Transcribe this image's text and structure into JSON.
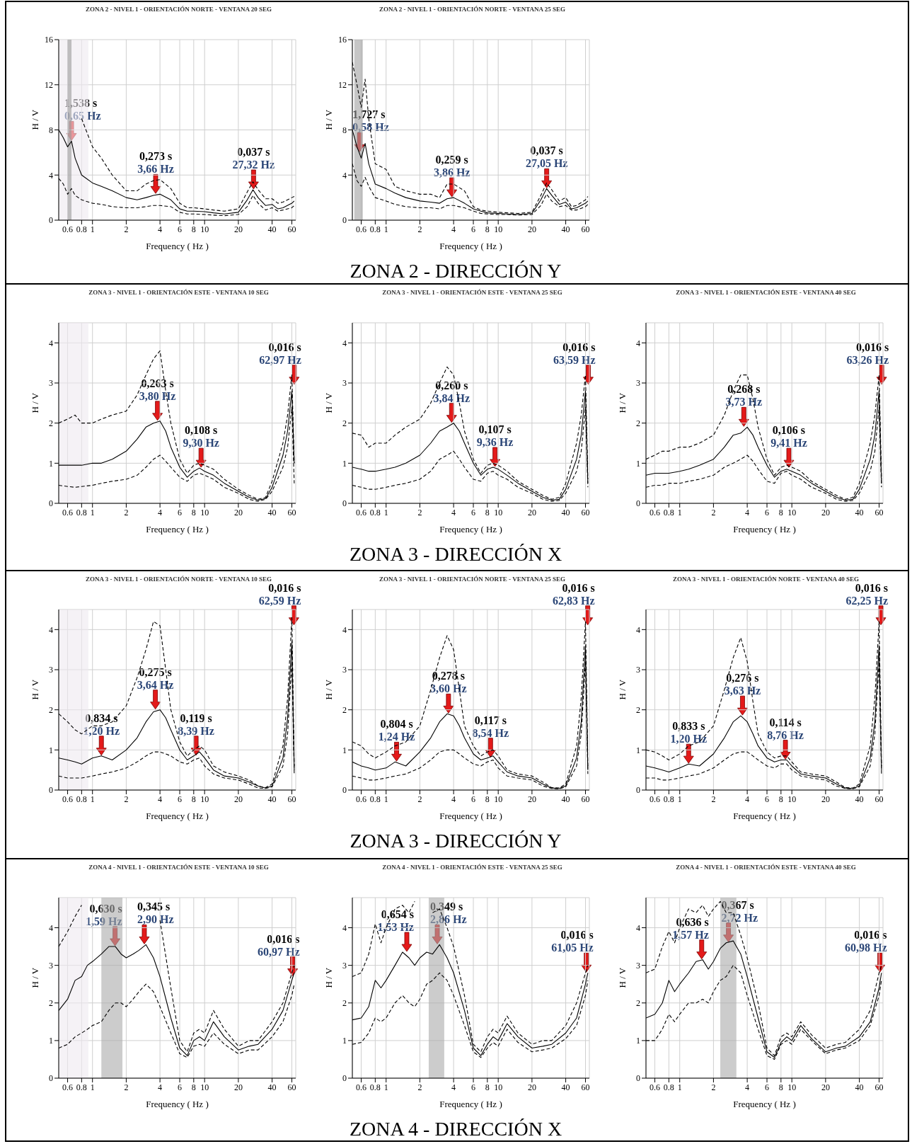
{
  "chart_data": [
    {
      "type": "line",
      "title": "ZONA 2 - NIVEL 1 - ORIENTACIÓN NORTE - VENTANA 20 SEG",
      "xlabel": "Frequency ( Hz )",
      "ylabel": "H / V",
      "log": "x",
      "grid": true,
      "xlim": [
        0.5,
        65
      ],
      "xticks": [
        0.6,
        0.8,
        1,
        2,
        4,
        6,
        8,
        10,
        20,
        40,
        60
      ],
      "ylim": [
        0,
        16
      ],
      "yticks": [
        0,
        4,
        8,
        12,
        16
      ],
      "x": [
        0.5,
        0.55,
        0.6,
        0.65,
        0.7,
        0.8,
        1,
        1.2,
        1.5,
        2,
        2.5,
        3,
        3.5,
        4,
        5,
        6,
        7,
        8,
        10,
        12,
        15,
        20,
        24,
        27,
        30,
        35,
        40,
        45,
        50,
        60,
        63
      ],
      "series": [
        {
          "color": "#000000",
          "line_style": "solid",
          "values": [
            8,
            7.3,
            6.5,
            7,
            5.5,
            4,
            3.3,
            3,
            2.6,
            2,
            1.8,
            2,
            2.2,
            2.3,
            1.8,
            1,
            0.8,
            0.8,
            0.75,
            0.65,
            0.55,
            0.7,
            1.8,
            2.7,
            2,
            1.3,
            1.4,
            1,
            1.1,
            1.5,
            1.7
          ]
        },
        {
          "color": "#000000",
          "line_style": "dashed",
          "values": [
            null,
            null,
            null,
            null,
            null,
            9,
            6.5,
            5.5,
            4,
            2.6,
            2.6,
            3.2,
            3.5,
            3.6,
            2.8,
            1.5,
            1.1,
            1.1,
            1,
            0.9,
            0.8,
            1,
            2.5,
            3.4,
            2.7,
            1.9,
            1.9,
            1.5,
            1.6,
            2,
            2.1
          ]
        },
        {
          "color": "#000000",
          "line_style": "dashed",
          "values": [
            3.7,
            3.2,
            2.3,
            2.8,
            2.2,
            1.8,
            1.5,
            1.4,
            1.2,
            1.1,
            1.1,
            1.2,
            1.3,
            1.3,
            1.2,
            0.7,
            0.55,
            0.55,
            0.5,
            0.45,
            0.4,
            0.5,
            1.2,
            2.2,
            1.5,
            0.9,
            1.1,
            0.8,
            0.9,
            1.1,
            1.3
          ]
        }
      ],
      "bands": [
        {
          "axis": "x",
          "from": 0.5,
          "to": 0.92,
          "color": "#efe9f0"
        },
        {
          "axis": "x",
          "from": 0.6,
          "to": 0.65,
          "color": "#999999"
        }
      ],
      "annotations": [
        {
          "text": "1,538 s",
          "x": 0.65,
          "y": 7
        },
        {
          "text": "0,65 Hz",
          "x": 0.65,
          "y": 7
        },
        {
          "text": "0,273 s",
          "x": 3.66,
          "y": 2.3
        },
        {
          "text": "3,66 Hz",
          "x": 3.66,
          "y": 2.3
        },
        {
          "text": "0,037 s",
          "x": 27.32,
          "y": 2.7
        },
        {
          "text": "27,32 Hz",
          "x": 27.32,
          "y": 2.7
        },
        "ZONA 2 - DIRECCIÓN Y"
      ]
    },
    {
      "type": "line",
      "title": "ZONA 2 - NIVEL 1 - ORIENTACIÓN NORTE - VENTANA 25 SEG",
      "xlabel": "Frequency ( Hz )",
      "ylabel": "H / V",
      "log": "x",
      "grid": true,
      "xlim": [
        0.5,
        65
      ],
      "xticks": [
        0.6,
        0.8,
        1,
        2,
        4,
        6,
        8,
        10,
        20,
        40,
        60
      ],
      "ylim": [
        0,
        16
      ],
      "yticks": [
        0,
        4,
        8,
        12,
        16
      ],
      "x": [
        0.5,
        0.55,
        0.6,
        0.65,
        0.7,
        0.8,
        1,
        1.2,
        1.5,
        2,
        2.5,
        3,
        3.5,
        4,
        5,
        6,
        7,
        8,
        10,
        12,
        15,
        20,
        24,
        27,
        30,
        35,
        40,
        45,
        50,
        60,
        63
      ],
      "series": [
        {
          "color": "#000000",
          "line_style": "solid",
          "values": [
            8,
            6.5,
            5.5,
            6.8,
            5,
            3.2,
            2.8,
            2.4,
            2,
            1.7,
            1.6,
            1.5,
            1.9,
            2,
            1.5,
            1,
            0.8,
            0.65,
            0.6,
            0.55,
            0.5,
            0.6,
            1.8,
            2.8,
            2.2,
            1.4,
            1.6,
            1,
            1.1,
            1.5,
            1.7
          ]
        },
        {
          "color": "#000000",
          "line_style": "dashed",
          "values": [
            14,
            12,
            10,
            12.5,
            9,
            5,
            4.5,
            3,
            2.6,
            2.3,
            2.3,
            2,
            3.2,
            3.2,
            2.6,
            1.2,
            0.9,
            0.8,
            0.7,
            0.65,
            0.6,
            0.7,
            2.2,
            3.3,
            2.7,
            1.7,
            2,
            1.2,
            1.3,
            1.8,
            2.1
          ]
        },
        {
          "color": "#000000",
          "line_style": "dashed",
          "values": [
            5,
            3.5,
            3,
            3.8,
            3,
            2,
            1.7,
            1.4,
            1.2,
            1.1,
            1.1,
            1,
            1.3,
            1.3,
            1.1,
            0.8,
            0.6,
            0.55,
            0.5,
            0.5,
            0.45,
            0.5,
            1.3,
            2.3,
            1.7,
            1.2,
            1.3,
            0.9,
            0.9,
            1.2,
            1.4
          ]
        }
      ],
      "bands": [
        {
          "axis": "x",
          "from": 0.52,
          "to": 0.62,
          "color": "#a0a0a0"
        }
      ],
      "annotations": [
        {
          "text": "1,727 s",
          "x": 0.58,
          "y": 6
        },
        {
          "text": "0,58 Hz",
          "x": 0.58,
          "y": 6
        },
        {
          "text": "0,259 s",
          "x": 3.86,
          "y": 2
        },
        {
          "text": "3,86 Hz",
          "x": 3.86,
          "y": 2
        },
        {
          "text": "0,037 s",
          "x": 27.05,
          "y": 2.8
        },
        {
          "text": "27,05 Hz",
          "x": 27.05,
          "y": 2.8
        }
      ]
    },
    {
      "type": "line",
      "title": "ZONA 3 - NIVEL 1 - ORIENTACIÓN ESTE - VENTANA 10 SEG",
      "xlabel": "Frequency ( Hz )",
      "ylabel": "H / V",
      "log": "x",
      "grid": true,
      "xlim": [
        0.5,
        65
      ],
      "xticks": [
        0.6,
        0.8,
        1,
        2,
        4,
        6,
        8,
        10,
        20,
        40,
        60
      ],
      "ylim": [
        0,
        4.5
      ],
      "yticks": [
        0,
        1,
        2,
        3,
        4
      ],
      "x": [
        0.5,
        0.6,
        0.7,
        0.8,
        1,
        1.2,
        1.5,
        2,
        2.5,
        3,
        3.5,
        4,
        4.5,
        5,
        6,
        7,
        8,
        9,
        10,
        12,
        15,
        20,
        25,
        30,
        35,
        40,
        50,
        55,
        60,
        63
      ],
      "series": [
        {
          "color": "#000000",
          "line_style": "solid",
          "values": [
            0.95,
            0.95,
            0.95,
            0.95,
            1,
            1,
            1.1,
            1.3,
            1.6,
            1.9,
            2,
            2.05,
            1.8,
            1.4,
            0.9,
            0.65,
            0.8,
            0.88,
            0.8,
            0.7,
            0.5,
            0.3,
            0.15,
            0.08,
            0.12,
            0.4,
            1.2,
            1.8,
            2.8,
            1
          ]
        },
        {
          "color": "#000000",
          "line_style": "dashed",
          "values": [
            2,
            2.1,
            2.2,
            2,
            2,
            2.1,
            2.2,
            2.3,
            2.7,
            3.2,
            3.6,
            3.8,
            2.8,
            2,
            1.1,
            0.75,
            0.95,
            1,
            0.95,
            0.85,
            0.6,
            0.35,
            0.2,
            0.1,
            0.15,
            0.55,
            1.5,
            2.2,
            3.2,
            1
          ]
        },
        {
          "color": "#000000",
          "line_style": "dashed",
          "values": [
            0.45,
            0.42,
            0.4,
            0.42,
            0.45,
            0.5,
            0.55,
            0.6,
            0.7,
            0.9,
            1.1,
            1.2,
            1.05,
            0.9,
            0.65,
            0.55,
            0.7,
            0.75,
            0.7,
            0.6,
            0.4,
            0.25,
            0.1,
            0.05,
            0.1,
            0.3,
            0.9,
            1.4,
            2.4,
            0.5
          ]
        }
      ],
      "bands": [
        {
          "axis": "x",
          "from": 0.5,
          "to": 0.92,
          "color": "#efe9f0"
        }
      ],
      "annotations": [
        {
          "text": "0,263 s",
          "x": 3.8,
          "y": 2.05
        },
        {
          "text": "3,80 Hz",
          "x": 3.8,
          "y": 2.05
        },
        {
          "text": "0,108 s",
          "x": 9.3,
          "y": 0.88
        },
        {
          "text": "9,30 Hz",
          "x": 9.3,
          "y": 0.88
        },
        {
          "text": "0,016 s",
          "x": 62.97,
          "y": 2.95
        },
        {
          "text": "62,97 Hz",
          "x": 62.97,
          "y": 2.95
        },
        "ZONA 3 - DIRECCIÓN X"
      ]
    },
    {
      "type": "line",
      "title": "ZONA 3 - NIVEL 1 - ORIENTACIÓN ESTE - VENTANA 25 SEG",
      "xlabel": "Frequency ( Hz )",
      "ylabel": "H / V",
      "log": "x",
      "grid": true,
      "xlim": [
        0.5,
        65
      ],
      "xticks": [
        0.6,
        0.8,
        1,
        2,
        4,
        6,
        8,
        10,
        20,
        40,
        60
      ],
      "ylim": [
        0,
        4.5
      ],
      "yticks": [
        0,
        1,
        2,
        3,
        4
      ],
      "x": [
        0.5,
        0.6,
        0.7,
        0.8,
        1,
        1.2,
        1.5,
        2,
        2.5,
        3,
        3.5,
        4,
        4.5,
        5,
        6,
        7,
        8,
        9,
        10,
        12,
        15,
        20,
        25,
        30,
        35,
        40,
        50,
        55,
        60,
        63
      ],
      "series": [
        {
          "color": "#000000",
          "line_style": "solid",
          "values": [
            0.9,
            0.85,
            0.8,
            0.8,
            0.85,
            0.9,
            1,
            1.2,
            1.5,
            1.8,
            1.9,
            2,
            1.8,
            1.5,
            1,
            0.7,
            0.85,
            0.9,
            0.85,
            0.7,
            0.5,
            0.3,
            0.15,
            0.08,
            0.1,
            0.35,
            1.1,
            1.7,
            2.8,
            0.5
          ]
        },
        {
          "color": "#000000",
          "line_style": "dashed",
          "values": [
            1.75,
            1.7,
            1.4,
            1.5,
            1.5,
            1.7,
            1.9,
            2.1,
            2.5,
            3,
            3.4,
            3.2,
            2.5,
            1.8,
            1.1,
            0.75,
            0.95,
            1,
            0.95,
            0.8,
            0.55,
            0.35,
            0.2,
            0.1,
            0.15,
            0.5,
            1.5,
            2.2,
            3.2,
            0.6
          ]
        },
        {
          "color": "#000000",
          "line_style": "dashed",
          "values": [
            0.45,
            0.4,
            0.35,
            0.35,
            0.4,
            0.45,
            0.5,
            0.6,
            0.8,
            1.1,
            1.2,
            1.3,
            1.1,
            0.9,
            0.6,
            0.55,
            0.75,
            0.8,
            0.7,
            0.6,
            0.4,
            0.25,
            0.1,
            0.05,
            0.07,
            0.25,
            0.8,
            1.3,
            2.4,
            0.4
          ]
        }
      ],
      "annotations": [
        {
          "text": "0,260 s",
          "x": 3.84,
          "y": 2
        },
        {
          "text": "3,84 Hz",
          "x": 3.84,
          "y": 2
        },
        {
          "text": "0,107 s",
          "x": 9.36,
          "y": 0.9
        },
        {
          "text": "9,36 Hz",
          "x": 9.36,
          "y": 0.9
        },
        {
          "text": "0,016 s",
          "x": 63.59,
          "y": 2.95
        },
        {
          "text": "63,59 Hz",
          "x": 63.59,
          "y": 2.95
        }
      ]
    },
    {
      "type": "line",
      "title": "ZONA 3 - NIVEL 1 - ORIENTACIÓN ESTE - VENTANA 40 SEG",
      "xlabel": "Frequency ( Hz )",
      "ylabel": "H / V",
      "log": "x",
      "grid": true,
      "xlim": [
        0.5,
        65
      ],
      "xticks": [
        0.6,
        0.8,
        1,
        2,
        4,
        6,
        8,
        10,
        20,
        40,
        60
      ],
      "ylim": [
        0,
        4.5
      ],
      "yticks": [
        0,
        1,
        2,
        3,
        4
      ],
      "x": [
        0.5,
        0.6,
        0.7,
        0.8,
        1,
        1.2,
        1.5,
        2,
        2.5,
        3,
        3.5,
        4,
        4.5,
        5,
        6,
        7,
        8,
        9,
        10,
        12,
        15,
        20,
        25,
        30,
        35,
        40,
        50,
        55,
        60,
        63
      ],
      "series": [
        {
          "color": "#000000",
          "line_style": "solid",
          "values": [
            0.7,
            0.75,
            0.75,
            0.75,
            0.8,
            0.85,
            0.95,
            1.1,
            1.4,
            1.7,
            1.75,
            1.9,
            1.7,
            1.4,
            0.95,
            0.65,
            0.8,
            0.85,
            0.8,
            0.7,
            0.5,
            0.3,
            0.15,
            0.08,
            0.1,
            0.35,
            1.1,
            1.7,
            2.8,
            0.5
          ]
        },
        {
          "color": "#000000",
          "line_style": "dashed",
          "values": [
            1.1,
            1.2,
            1.3,
            1.3,
            1.4,
            1.4,
            1.5,
            1.7,
            2.2,
            2.8,
            3.2,
            3.2,
            2.6,
            1.9,
            1.1,
            0.7,
            0.9,
            0.95,
            0.9,
            0.8,
            0.55,
            0.35,
            0.2,
            0.1,
            0.15,
            0.5,
            1.5,
            2.2,
            3.2,
            0.6
          ]
        },
        {
          "color": "#000000",
          "line_style": "dashed",
          "values": [
            0.4,
            0.45,
            0.45,
            0.5,
            0.5,
            0.55,
            0.6,
            0.7,
            0.9,
            1,
            1.1,
            1.2,
            1.05,
            0.85,
            0.55,
            0.5,
            0.75,
            0.8,
            0.7,
            0.6,
            0.4,
            0.25,
            0.1,
            0.05,
            0.07,
            0.25,
            0.8,
            1.3,
            2.4,
            0.4
          ]
        }
      ],
      "annotations": [
        {
          "text": "0,268 s",
          "x": 3.73,
          "y": 1.9
        },
        {
          "text": "3,73 Hz",
          "x": 3.73,
          "y": 1.9
        },
        {
          "text": "0,106 s",
          "x": 9.41,
          "y": 0.88
        },
        {
          "text": "9,41 Hz",
          "x": 9.41,
          "y": 0.88
        },
        {
          "text": "0,016 s",
          "x": 63.26,
          "y": 2.95
        },
        {
          "text": "63,26 Hz",
          "x": 63.26,
          "y": 2.95
        }
      ]
    },
    {
      "type": "line",
      "title": "ZONA 3 - NIVEL 1 - ORIENTACIÓN NORTE - VENTANA 10 SEG",
      "xlabel": "Frequency ( Hz )",
      "ylabel": "H / V",
      "log": "x",
      "grid": true,
      "xlim": [
        0.5,
        65
      ],
      "xticks": [
        0.6,
        0.8,
        1,
        2,
        4,
        6,
        8,
        10,
        20,
        40,
        60
      ],
      "ylim": [
        0,
        4.5
      ],
      "yticks": [
        0,
        1,
        2,
        3,
        4
      ],
      "x": [
        0.5,
        0.6,
        0.7,
        0.8,
        1,
        1.2,
        1.5,
        2,
        2.5,
        3,
        3.5,
        4,
        4.5,
        5,
        6,
        7,
        8,
        9,
        10,
        12,
        15,
        20,
        25,
        30,
        35,
        40,
        50,
        55,
        60,
        63
      ],
      "series": [
        {
          "color": "#000000",
          "line_style": "solid",
          "values": [
            0.8,
            0.75,
            0.7,
            0.65,
            0.8,
            0.85,
            0.75,
            1,
            1.3,
            1.7,
            1.95,
            2,
            1.8,
            1.5,
            1,
            0.75,
            0.85,
            0.95,
            0.8,
            0.5,
            0.35,
            0.3,
            0.2,
            0.1,
            0.05,
            0.1,
            0.8,
            1.8,
            3.7,
            0.5
          ]
        },
        {
          "color": "#000000",
          "line_style": "dashed",
          "values": [
            1.9,
            1.7,
            1.5,
            1.4,
            1.6,
            1.6,
            1.7,
            2.1,
            2.8,
            3.5,
            4.2,
            4.1,
            3,
            2,
            1.2,
            0.85,
            1,
            1.1,
            1,
            0.6,
            0.45,
            0.35,
            0.25,
            0.1,
            0.06,
            0.15,
            1.1,
            2.3,
            4.3,
            0.6
          ]
        },
        {
          "color": "#000000",
          "line_style": "dashed",
          "values": [
            0.35,
            0.3,
            0.3,
            0.3,
            0.35,
            0.4,
            0.45,
            0.55,
            0.7,
            0.85,
            0.95,
            0.95,
            0.9,
            0.85,
            0.7,
            0.65,
            0.75,
            0.8,
            0.6,
            0.4,
            0.3,
            0.25,
            0.15,
            0.05,
            0.04,
            0.08,
            0.6,
            1.4,
            3.2,
            0.4
          ]
        }
      ],
      "bands": [
        {
          "axis": "x",
          "from": 0.5,
          "to": 0.92,
          "color": "#efe9f0"
        }
      ],
      "annotations": [
        {
          "text": "0,834 s",
          "x": 1.2,
          "y": 0.85
        },
        {
          "text": "1,20 Hz",
          "x": 1.2,
          "y": 0.85
        },
        {
          "text": "0,275 s",
          "x": 3.64,
          "y": 2
        },
        {
          "text": "3,64 Hz",
          "x": 3.64,
          "y": 2
        },
        {
          "text": "0,119 s",
          "x": 8.39,
          "y": 0.85
        },
        {
          "text": "8,39 Hz",
          "x": 8.39,
          "y": 0.85
        },
        {
          "text": "0,016 s",
          "x": 62.59,
          "y": 4.1
        },
        {
          "text": "62,59 Hz",
          "x": 62.59,
          "y": 4.1
        },
        "ZONA 3 - DIRECCIÓN Y"
      ]
    },
    {
      "type": "line",
      "title": "ZONA 3 - NIVEL 1 - ORIENTACIÓN NORTE - VENTANA 25 SEG",
      "xlabel": "Frequency ( Hz )",
      "ylabel": "H / V",
      "log": "x",
      "grid": true,
      "xlim": [
        0.5,
        65
      ],
      "xticks": [
        0.6,
        0.8,
        1,
        2,
        4,
        6,
        8,
        10,
        20,
        40,
        60
      ],
      "ylim": [
        0,
        4.5
      ],
      "yticks": [
        0,
        1,
        2,
        3,
        4
      ],
      "x": [
        0.5,
        0.6,
        0.7,
        0.8,
        1,
        1.2,
        1.5,
        2,
        2.5,
        3,
        3.5,
        4,
        4.5,
        5,
        6,
        7,
        8,
        9,
        10,
        12,
        15,
        20,
        25,
        30,
        35,
        40,
        50,
        55,
        60,
        63
      ],
      "series": [
        {
          "color": "#000000",
          "line_style": "solid",
          "values": [
            0.7,
            0.6,
            0.55,
            0.5,
            0.55,
            0.7,
            0.6,
            0.95,
            1.3,
            1.7,
            1.9,
            1.85,
            1.6,
            1.3,
            0.9,
            0.75,
            0.8,
            0.85,
            0.7,
            0.45,
            0.35,
            0.3,
            0.15,
            0.05,
            0.04,
            0.1,
            0.8,
            1.7,
            3.6,
            0.5
          ]
        },
        {
          "color": "#000000",
          "line_style": "dashed",
          "values": [
            1.2,
            1.1,
            0.9,
            0.8,
            0.95,
            1.1,
            1.2,
            1.6,
            2.5,
            3.3,
            3.85,
            3.5,
            2.5,
            1.6,
            1.1,
            0.85,
            0.95,
            1,
            0.85,
            0.5,
            0.4,
            0.35,
            0.2,
            0.06,
            0.05,
            0.15,
            1.1,
            2.3,
            4.2,
            0.6
          ]
        },
        {
          "color": "#000000",
          "line_style": "dashed",
          "values": [
            0.35,
            0.3,
            0.25,
            0.25,
            0.3,
            0.35,
            0.4,
            0.55,
            0.75,
            0.95,
            1,
            1,
            0.9,
            0.8,
            0.65,
            0.6,
            0.7,
            0.75,
            0.55,
            0.35,
            0.3,
            0.25,
            0.1,
            0.04,
            0.03,
            0.08,
            0.6,
            1.4,
            3.2,
            0.4
          ]
        }
      ],
      "annotations": [
        {
          "text": "0,804 s",
          "x": 1.24,
          "y": 0.7
        },
        {
          "text": "1,24 Hz",
          "x": 1.24,
          "y": 0.7
        },
        {
          "text": "0,278 s",
          "x": 3.6,
          "y": 1.9
        },
        {
          "text": "3,60 Hz",
          "x": 3.6,
          "y": 1.9
        },
        {
          "text": "0,117 s",
          "x": 8.54,
          "y": 0.8
        },
        {
          "text": "8,54 Hz",
          "x": 8.54,
          "y": 0.8
        },
        {
          "text": "0,016 s",
          "x": 62.83,
          "y": 4.1
        },
        {
          "text": "62,83 Hz",
          "x": 62.83,
          "y": 4.1
        }
      ]
    },
    {
      "type": "line",
      "title": "ZONA 3 - NIVEL 1 - ORIENTACIÓN NORTE - VENTANA 40 SEG",
      "xlabel": "Frequency ( Hz )",
      "ylabel": "H / V",
      "log": "x",
      "grid": true,
      "xlim": [
        0.5,
        65
      ],
      "xticks": [
        0.6,
        0.8,
        1,
        2,
        4,
        6,
        8,
        10,
        20,
        40,
        60
      ],
      "ylim": [
        0,
        4.5
      ],
      "yticks": [
        0,
        1,
        2,
        3,
        4
      ],
      "x": [
        0.5,
        0.6,
        0.7,
        0.8,
        1,
        1.2,
        1.5,
        2,
        2.5,
        3,
        3.5,
        4,
        4.5,
        5,
        6,
        7,
        8,
        9,
        10,
        12,
        15,
        20,
        25,
        30,
        35,
        40,
        50,
        55,
        60,
        63
      ],
      "series": [
        {
          "color": "#000000",
          "line_style": "solid",
          "values": [
            0.6,
            0.55,
            0.5,
            0.45,
            0.55,
            0.65,
            0.6,
            0.9,
            1.3,
            1.7,
            1.85,
            1.7,
            1.4,
            1.1,
            0.8,
            0.7,
            0.75,
            0.75,
            0.6,
            0.4,
            0.35,
            0.3,
            0.15,
            0.05,
            0.04,
            0.1,
            0.8,
            1.7,
            3.6,
            0.5
          ]
        },
        {
          "color": "#000000",
          "line_style": "dashed",
          "values": [
            1,
            0.95,
            0.85,
            0.75,
            0.9,
            1.1,
            1.2,
            1.6,
            2.5,
            3.3,
            3.8,
            3.2,
            2.2,
            1.4,
            0.95,
            0.8,
            0.85,
            0.85,
            0.7,
            0.45,
            0.4,
            0.35,
            0.2,
            0.06,
            0.05,
            0.15,
            1.1,
            2.3,
            4.2,
            0.6
          ]
        },
        {
          "color": "#000000",
          "line_style": "dashed",
          "values": [
            0.3,
            0.3,
            0.25,
            0.25,
            0.3,
            0.35,
            0.4,
            0.55,
            0.75,
            0.9,
            0.95,
            0.95,
            0.85,
            0.75,
            0.6,
            0.55,
            0.65,
            0.65,
            0.5,
            0.35,
            0.3,
            0.25,
            0.1,
            0.04,
            0.03,
            0.08,
            0.6,
            1.4,
            3.2,
            0.4
          ]
        }
      ],
      "annotations": [
        {
          "text": "0,833 s",
          "x": 1.2,
          "y": 0.65
        },
        {
          "text": "1,20 Hz",
          "x": 1.2,
          "y": 0.65
        },
        {
          "text": "0,276 s",
          "x": 3.63,
          "y": 1.85
        },
        {
          "text": "3,63 Hz",
          "x": 3.63,
          "y": 1.85
        },
        {
          "text": "0,114 s",
          "x": 8.76,
          "y": 0.75
        },
        {
          "text": "8,76 Hz",
          "x": 8.76,
          "y": 0.75
        },
        {
          "text": "0,016 s",
          "x": 62.25,
          "y": 4.1
        },
        {
          "text": "62,25 Hz",
          "x": 62.25,
          "y": 4.1
        }
      ]
    },
    {
      "type": "line",
      "title": "ZONA 4 - NIVEL 1 - ORIENTACIÓN ESTE - VENTANA 10 SEG",
      "xlabel": "Frequency ( Hz )",
      "ylabel": "H / V",
      "log": "x",
      "grid": true,
      "xlim": [
        0.5,
        65
      ],
      "xticks": [
        0.6,
        0.8,
        1,
        2,
        4,
        6,
        8,
        10,
        20,
        40,
        60
      ],
      "ylim": [
        0,
        4.8
      ],
      "yticks": [
        0,
        1,
        2,
        3,
        4
      ],
      "x": [
        0.5,
        0.6,
        0.7,
        0.8,
        0.9,
        1,
        1.2,
        1.4,
        1.6,
        1.8,
        2,
        2.3,
        2.6,
        3,
        3.5,
        4,
        5,
        6,
        7,
        8,
        9,
        10,
        12,
        15,
        20,
        25,
        30,
        40,
        50,
        60,
        63
      ],
      "series": [
        {
          "color": "#000000",
          "line_style": "solid",
          "values": [
            1.8,
            2.1,
            2.6,
            2.7,
            3,
            3.1,
            3.3,
            3.5,
            3.5,
            3.3,
            3.2,
            3.3,
            3.4,
            3.55,
            3.2,
            2.7,
            1.6,
            0.8,
            0.6,
            1,
            1.1,
            1,
            1.5,
            1.1,
            0.75,
            0.85,
            0.9,
            1.3,
            1.8,
            2.6,
            2.8
          ]
        },
        {
          "color": "#000000",
          "line_style": "dashed",
          "values": [
            3.5,
            3.9,
            4.3,
            4.6,
            null,
            null,
            null,
            null,
            null,
            null,
            null,
            null,
            null,
            null,
            null,
            4.2,
            2.4,
            1,
            0.7,
            1.2,
            1.3,
            1.2,
            1.8,
            1.3,
            0.85,
            1,
            1,
            1.5,
            2,
            2.8,
            3
          ]
        },
        {
          "color": "#000000",
          "line_style": "dashed",
          "values": [
            0.8,
            0.9,
            1.1,
            1.2,
            1.3,
            1.4,
            1.5,
            1.8,
            2,
            2,
            1.9,
            2.1,
            2.3,
            2.5,
            2.3,
            1.9,
            1.2,
            0.65,
            0.55,
            0.85,
            0.9,
            0.85,
            1.2,
            0.9,
            0.65,
            0.75,
            0.75,
            1.1,
            1.5,
            2.2,
            2.5
          ]
        }
      ],
      "bands": [
        {
          "axis": "x",
          "from": 0.5,
          "to": 0.92,
          "color": "#efe9f0"
        },
        {
          "axis": "x",
          "from": 1.2,
          "to": 1.85,
          "color": "#aaaaaa"
        }
      ],
      "annotations": [
        {
          "text": "0,630 s",
          "x": 1.59,
          "y": 3.5
        },
        {
          "text": "1,59 Hz",
          "x": 1.59,
          "y": 3.5
        },
        {
          "text": "0,345 s",
          "x": 2.9,
          "y": 3.55
        },
        {
          "text": "2,90 Hz",
          "x": 2.9,
          "y": 3.55
        },
        {
          "text": "0,016 s",
          "x": 60.97,
          "y": 2.7
        },
        {
          "text": "60,97 Hz",
          "x": 60.97,
          "y": 2.7
        },
        "ZONA 4 - DIRECCIÓN X"
      ]
    },
    {
      "type": "line",
      "title": "ZONA 4 - NIVEL 1 - ORIENTACIÓN ESTE - VENTANA 25 SEG",
      "xlabel": "Frequency ( Hz )",
      "ylabel": "H / V",
      "log": "x",
      "grid": true,
      "xlim": [
        0.5,
        65
      ],
      "xticks": [
        0.6,
        0.8,
        1,
        2,
        4,
        6,
        8,
        10,
        20,
        40,
        60
      ],
      "ylim": [
        0,
        4.8
      ],
      "yticks": [
        0,
        1,
        2,
        3,
        4
      ],
      "x": [
        0.5,
        0.6,
        0.7,
        0.8,
        0.9,
        1,
        1.2,
        1.4,
        1.6,
        1.8,
        2,
        2.3,
        2.6,
        3,
        3.5,
        4,
        5,
        6,
        7,
        8,
        9,
        10,
        12,
        15,
        20,
        25,
        30,
        40,
        50,
        60,
        63
      ],
      "series": [
        {
          "color": "#000000",
          "line_style": "solid",
          "values": [
            1.55,
            1.6,
            1.9,
            2.6,
            2.4,
            2.6,
            3,
            3.35,
            3.2,
            3,
            3.2,
            3.35,
            3.3,
            3.55,
            3.2,
            2.8,
            1.8,
            0.8,
            0.6,
            0.9,
            1.1,
            1,
            1.45,
            1.1,
            0.8,
            0.85,
            0.9,
            1.2,
            1.6,
            2.5,
            2.8
          ]
        },
        {
          "color": "#000000",
          "line_style": "dashed",
          "values": [
            2.7,
            2.8,
            3.3,
            4.1,
            3.6,
            4,
            4.5,
            4.6,
            4.4,
            4.7,
            null,
            null,
            4.4,
            4.5,
            4,
            3.5,
            2.2,
            0.9,
            0.7,
            1.1,
            1.3,
            1.2,
            1.65,
            1.2,
            0.9,
            1,
            1,
            1.4,
            2,
            2.8,
            3
          ]
        },
        {
          "color": "#000000",
          "line_style": "dashed",
          "values": [
            0.9,
            0.95,
            1.2,
            1.6,
            1.5,
            1.6,
            2,
            2.2,
            2,
            1.9,
            2.1,
            2.5,
            2.6,
            2.8,
            2.6,
            2.2,
            1.4,
            0.7,
            0.55,
            0.8,
            0.95,
            0.85,
            1.3,
            0.95,
            0.7,
            0.75,
            0.8,
            1.05,
            1.4,
            2.2,
            2.6
          ]
        }
      ],
      "bands": [
        {
          "axis": "x",
          "from": 2.4,
          "to": 3.3,
          "color": "#aaaaaa"
        }
      ],
      "annotations": [
        {
          "text": "0,654 s",
          "x": 1.53,
          "y": 3.35
        },
        {
          "text": "1,53 Hz",
          "x": 1.53,
          "y": 3.35
        },
        {
          "text": "0,349 s",
          "x": 2.86,
          "y": 3.55
        },
        {
          "text": "2,86 Hz",
          "x": 2.86,
          "y": 3.55
        },
        {
          "text": "0,016 s",
          "x": 61.05,
          "y": 2.8
        },
        {
          "text": "61,05 Hz",
          "x": 61.05,
          "y": 2.8
        }
      ]
    },
    {
      "type": "line",
      "title": "ZONA 4 - NIVEL 1 - ORIENTACIÓN ESTE - VENTANA 40 SEG",
      "xlabel": "Frequency ( Hz )",
      "ylabel": "H / V",
      "log": "x",
      "grid": true,
      "xlim": [
        0.5,
        65
      ],
      "xticks": [
        0.6,
        0.8,
        1,
        2,
        4,
        6,
        8,
        10,
        20,
        40,
        60
      ],
      "ylim": [
        0,
        4.8
      ],
      "yticks": [
        0,
        1,
        2,
        3,
        4
      ],
      "x": [
        0.5,
        0.6,
        0.7,
        0.8,
        0.9,
        1,
        1.2,
        1.4,
        1.6,
        1.8,
        2,
        2.3,
        2.6,
        3,
        3.5,
        4,
        5,
        6,
        7,
        8,
        9,
        10,
        12,
        15,
        20,
        25,
        30,
        40,
        50,
        60,
        63
      ],
      "series": [
        {
          "color": "#000000",
          "line_style": "solid",
          "values": [
            1.6,
            1.7,
            2,
            2.6,
            2.3,
            2.5,
            2.8,
            3.1,
            3.15,
            2.9,
            3.1,
            3.45,
            3.6,
            3.65,
            3.3,
            2.7,
            1.6,
            0.7,
            0.55,
            0.95,
            1.1,
            1,
            1.4,
            1.05,
            0.7,
            0.8,
            0.85,
            1.1,
            1.5,
            2.4,
            2.8
          ]
        },
        {
          "color": "#000000",
          "line_style": "dashed",
          "values": [
            2.8,
            2.9,
            3.5,
            3.9,
            3.6,
            4,
            4.5,
            4.4,
            4.6,
            4.3,
            4.5,
            4.7,
            4.4,
            4.4,
            3.8,
            3.2,
            2,
            0.8,
            0.6,
            1.1,
            1.2,
            1.1,
            1.5,
            1.15,
            0.8,
            0.9,
            0.95,
            1.3,
            1.8,
            2.8,
            3
          ]
        },
        {
          "color": "#000000",
          "line_style": "dashed",
          "values": [
            1,
            1,
            1.3,
            1.7,
            1.5,
            1.7,
            2,
            2,
            2.1,
            2,
            2.3,
            2.6,
            2.7,
            3,
            2.8,
            2.2,
            1.3,
            0.6,
            0.5,
            0.9,
            1,
            0.9,
            1.3,
            1,
            0.65,
            0.75,
            0.8,
            1,
            1.4,
            2.2,
            2.6
          ]
        }
      ],
      "bands": [
        {
          "axis": "x",
          "from": 2.3,
          "to": 3.2,
          "color": "#aaaaaa"
        }
      ],
      "annotations": [
        {
          "text": "0,636 s",
          "x": 1.57,
          "y": 3.15
        },
        {
          "text": "1,57 Hz",
          "x": 1.57,
          "y": 3.15
        },
        {
          "text": "0,367 s",
          "x": 2.72,
          "y": 3.6
        },
        {
          "text": "2,72 Hz",
          "x": 2.72,
          "y": 3.6
        },
        {
          "text": "0,016 s",
          "x": 60.98,
          "y": 2.8
        },
        {
          "text": "60,98 Hz",
          "x": 60.98,
          "y": 2.8
        }
      ]
    }
  ]
}
